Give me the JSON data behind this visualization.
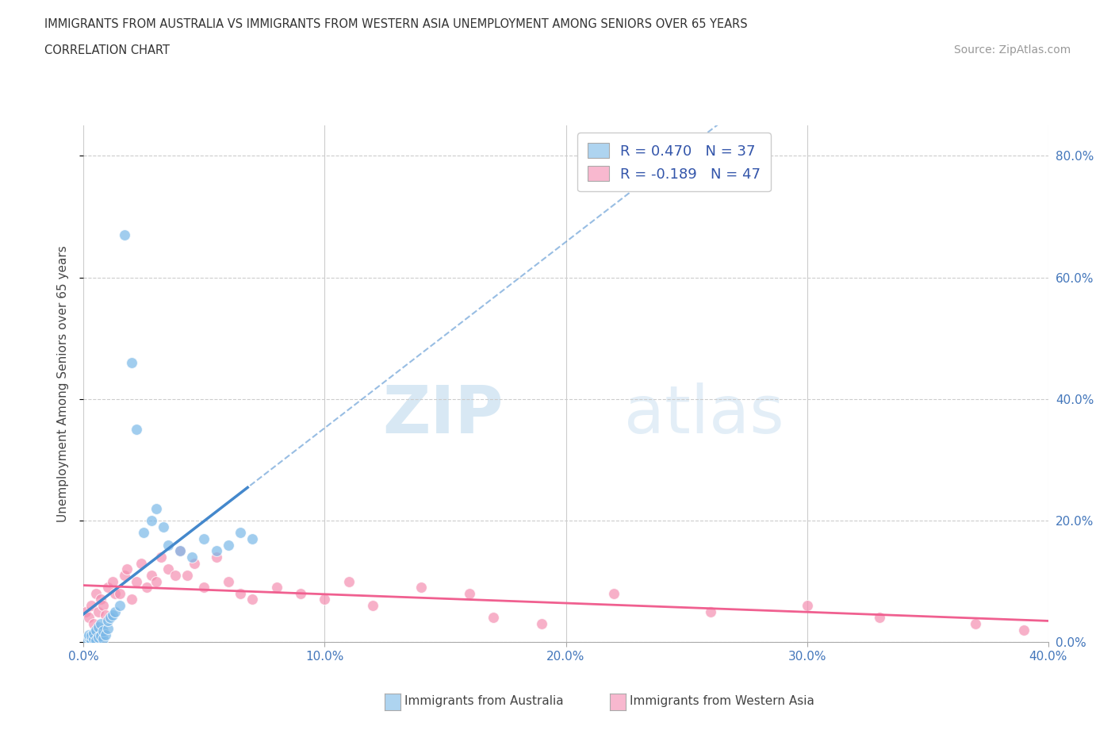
{
  "title_line1": "IMMIGRANTS FROM AUSTRALIA VS IMMIGRANTS FROM WESTERN ASIA UNEMPLOYMENT AMONG SENIORS OVER 65 YEARS",
  "title_line2": "CORRELATION CHART",
  "source": "Source: ZipAtlas.com",
  "ylabel": "Unemployment Among Seniors over 65 years",
  "watermark_zip": "ZIP",
  "watermark_atlas": "atlas",
  "legend_label_aus": "R = 0.470   N = 37",
  "legend_label_west": "R = -0.189   N = 47",
  "legend_label_aus_bottom": "Immigrants from Australia",
  "legend_label_west_bottom": "Immigrants from Western Asia",
  "aus_color": "#7ab8e8",
  "west_color": "#f48fb1",
  "aus_color_light": "#aed4f0",
  "west_color_light": "#f8b8cf",
  "trend_aus_color": "#4488cc",
  "trend_west_color": "#f06090",
  "xlim": [
    0.0,
    0.4
  ],
  "ylim": [
    0.0,
    0.85
  ],
  "xticks": [
    0.0,
    0.1,
    0.2,
    0.3,
    0.4
  ],
  "xticklabels": [
    "0.0%",
    "10.0%",
    "20.0%",
    "30.0%",
    "40.0%"
  ],
  "yticks": [
    0.0,
    0.2,
    0.4,
    0.6,
    0.8
  ],
  "yticklabels_right": [
    "0.0%",
    "20.0%",
    "40.0%",
    "60.0%",
    "80.0%"
  ],
  "aus_x": [
    0.001,
    0.002,
    0.002,
    0.003,
    0.003,
    0.004,
    0.004,
    0.005,
    0.005,
    0.006,
    0.006,
    0.007,
    0.007,
    0.008,
    0.008,
    0.009,
    0.01,
    0.01,
    0.011,
    0.012,
    0.013,
    0.015,
    0.017,
    0.02,
    0.022,
    0.025,
    0.028,
    0.03,
    0.033,
    0.035,
    0.04,
    0.045,
    0.05,
    0.055,
    0.06,
    0.065,
    0.07
  ],
  "aus_y": [
    0.005,
    0.008,
    0.012,
    0.003,
    0.01,
    0.005,
    0.015,
    0.003,
    0.02,
    0.008,
    0.025,
    0.01,
    0.03,
    0.005,
    0.018,
    0.012,
    0.022,
    0.035,
    0.04,
    0.045,
    0.05,
    0.06,
    0.67,
    0.46,
    0.35,
    0.18,
    0.2,
    0.22,
    0.19,
    0.16,
    0.15,
    0.14,
    0.17,
    0.15,
    0.16,
    0.18,
    0.17
  ],
  "west_x": [
    0.001,
    0.002,
    0.003,
    0.004,
    0.005,
    0.006,
    0.007,
    0.008,
    0.009,
    0.01,
    0.012,
    0.013,
    0.015,
    0.017,
    0.018,
    0.02,
    0.022,
    0.024,
    0.026,
    0.028,
    0.03,
    0.032,
    0.035,
    0.038,
    0.04,
    0.043,
    0.046,
    0.05,
    0.055,
    0.06,
    0.065,
    0.07,
    0.08,
    0.09,
    0.1,
    0.11,
    0.12,
    0.14,
    0.16,
    0.17,
    0.19,
    0.22,
    0.26,
    0.3,
    0.33,
    0.37,
    0.39
  ],
  "west_y": [
    0.05,
    0.04,
    0.06,
    0.03,
    0.08,
    0.05,
    0.07,
    0.06,
    0.045,
    0.09,
    0.1,
    0.08,
    0.08,
    0.11,
    0.12,
    0.07,
    0.1,
    0.13,
    0.09,
    0.11,
    0.1,
    0.14,
    0.12,
    0.11,
    0.15,
    0.11,
    0.13,
    0.09,
    0.14,
    0.1,
    0.08,
    0.07,
    0.09,
    0.08,
    0.07,
    0.1,
    0.06,
    0.09,
    0.08,
    0.04,
    0.03,
    0.08,
    0.05,
    0.06,
    0.04,
    0.03,
    0.02
  ]
}
